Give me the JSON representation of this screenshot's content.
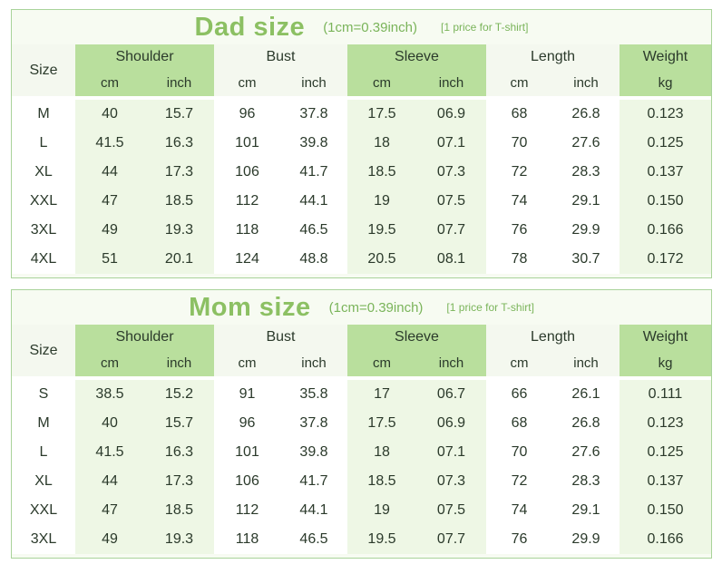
{
  "dad": {
    "title": "Dad size",
    "unit_note": "(1cm=0.39inch)",
    "price_note": "[1 price for T-shirt]",
    "columns": {
      "size": "Size",
      "shoulder": "Shoulder",
      "bust": "Bust",
      "sleeve": "Sleeve",
      "length": "Length",
      "weight": "Weight",
      "cm": "cm",
      "inch": "inch",
      "kg": "kg"
    },
    "rows": [
      [
        "M",
        "40",
        "15.7",
        "96",
        "37.8",
        "17.5",
        "06.9",
        "68",
        "26.8",
        "0.123"
      ],
      [
        "L",
        "41.5",
        "16.3",
        "101",
        "39.8",
        "18",
        "07.1",
        "70",
        "27.6",
        "0.125"
      ],
      [
        "XL",
        "44",
        "17.3",
        "106",
        "41.7",
        "18.5",
        "07.3",
        "72",
        "28.3",
        "0.137"
      ],
      [
        "XXL",
        "47",
        "18.5",
        "112",
        "44.1",
        "19",
        "07.5",
        "74",
        "29.1",
        "0.150"
      ],
      [
        "3XL",
        "49",
        "19.3",
        "118",
        "46.5",
        "19.5",
        "07.7",
        "76",
        "29.9",
        "0.166"
      ],
      [
        "4XL",
        "51",
        "20.1",
        "124",
        "48.8",
        "20.5",
        "08.1",
        "78",
        "30.7",
        "0.172"
      ]
    ]
  },
  "mom": {
    "title": "Mom size",
    "unit_note": "(1cm=0.39inch)",
    "price_note": "[1 price for T-shirt]",
    "columns": {
      "size": "Size",
      "shoulder": "Shoulder",
      "bust": "Bust",
      "sleeve": "Sleeve",
      "length": "Length",
      "weight": "Weight",
      "cm": "cm",
      "inch": "inch",
      "kg": "kg"
    },
    "rows": [
      [
        "S",
        "38.5",
        "15.2",
        "91",
        "35.8",
        "17",
        "06.7",
        "66",
        "26.1",
        "0.111"
      ],
      [
        "M",
        "40",
        "15.7",
        "96",
        "37.8",
        "17.5",
        "06.9",
        "68",
        "26.8",
        "0.123"
      ],
      [
        "L",
        "41.5",
        "16.3",
        "101",
        "39.8",
        "18",
        "07.1",
        "70",
        "27.6",
        "0.125"
      ],
      [
        "XL",
        "44",
        "17.3",
        "106",
        "41.7",
        "18.5",
        "07.3",
        "72",
        "28.3",
        "0.137"
      ],
      [
        "XXL",
        "47",
        "18.5",
        "112",
        "44.1",
        "19",
        "07.5",
        "74",
        "29.1",
        "0.150"
      ],
      [
        "3XL",
        "49",
        "19.3",
        "118",
        "46.5",
        "19.5",
        "07.7",
        "76",
        "29.9",
        "0.166"
      ]
    ]
  },
  "colors": {
    "title_green": "#8cc063",
    "header_green": "#b9df9d",
    "border_green": "#a9d39a"
  }
}
